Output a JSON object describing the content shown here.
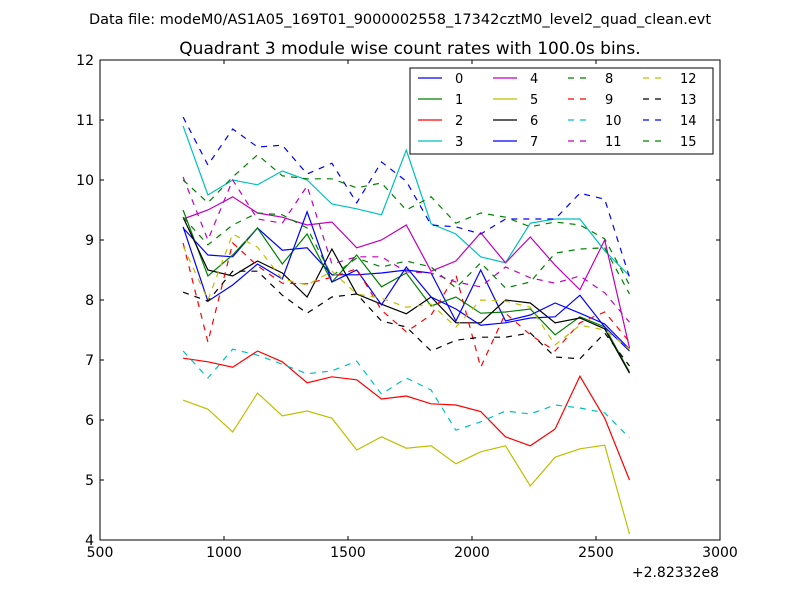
{
  "figure": {
    "suptitle": "Data file: modeM0/AS1A05_169T01_9000002558_17342cztM0_level2_quad_clean.evt",
    "x_offset_label": "+2.82332e8"
  },
  "chart_data": {
    "type": "line",
    "title": "Quadrant 3 module wise count rates with 100.0s bins.",
    "xlabel": "",
    "ylabel": "",
    "xlim": [
      500,
      3000
    ],
    "ylim": [
      4,
      12
    ],
    "xticks": [
      500,
      1000,
      1500,
      2000,
      2500,
      3000
    ],
    "yticks": [
      4,
      5,
      6,
      7,
      8,
      9,
      10,
      11,
      12
    ],
    "grid": false,
    "legend_position": "top-right",
    "x": [
      835,
      935,
      1035,
      1135,
      1235,
      1335,
      1435,
      1535,
      1635,
      1735,
      1835,
      1935,
      2035,
      2135,
      2235,
      2335,
      2435,
      2535,
      2635
    ],
    "series": [
      {
        "name": "0",
        "color": "#0000ff",
        "dash": false,
        "values": [
          9.2,
          8.75,
          8.72,
          9.2,
          8.83,
          8.87,
          8.42,
          8.42,
          8.45,
          8.5,
          8.45,
          7.65,
          8.5,
          7.65,
          7.75,
          7.95,
          7.78,
          7.6,
          7.18
        ]
      },
      {
        "name": "1",
        "color": "#008000",
        "dash": false,
        "values": [
          9.5,
          8.4,
          8.75,
          9.2,
          8.6,
          9.1,
          8.3,
          8.75,
          8.22,
          8.45,
          7.9,
          8.05,
          7.78,
          7.8,
          7.85,
          7.42,
          7.72,
          7.55,
          6.8
        ]
      },
      {
        "name": "2",
        "color": "#ff0000",
        "dash": false,
        "values": [
          7.03,
          6.97,
          6.88,
          7.15,
          6.97,
          6.62,
          6.72,
          6.67,
          6.35,
          6.4,
          6.27,
          6.25,
          6.14,
          5.72,
          5.57,
          5.85,
          6.73,
          6.03,
          5.0
        ]
      },
      {
        "name": "3",
        "color": "#00bfbf",
        "dash": false,
        "values": [
          10.9,
          9.75,
          10.0,
          9.92,
          10.15,
          10.0,
          9.6,
          9.52,
          9.42,
          10.5,
          9.27,
          9.1,
          8.72,
          8.62,
          9.28,
          9.35,
          9.35,
          8.82,
          8.4
        ]
      },
      {
        "name": "4",
        "color": "#bf00bf",
        "dash": false,
        "values": [
          9.35,
          9.5,
          9.72,
          9.45,
          9.38,
          9.25,
          9.3,
          8.87,
          9.0,
          9.25,
          8.48,
          8.65,
          9.12,
          8.62,
          9.05,
          8.58,
          8.17,
          9.0,
          7.2
        ]
      },
      {
        "name": "5",
        "color": "#bfbf00",
        "dash": false,
        "values": [
          6.33,
          6.18,
          5.8,
          6.45,
          6.07,
          6.15,
          6.03,
          5.5,
          5.72,
          5.53,
          5.57,
          5.27,
          5.47,
          5.57,
          4.9,
          5.38,
          5.52,
          5.58,
          4.1
        ]
      },
      {
        "name": "6",
        "color": "#000000",
        "dash": false,
        "values": [
          9.38,
          8.5,
          8.4,
          8.65,
          8.45,
          8.05,
          8.85,
          8.1,
          7.93,
          7.77,
          8.05,
          7.62,
          7.62,
          8.0,
          7.95,
          7.62,
          7.7,
          7.52,
          6.78
        ]
      },
      {
        "name": "7",
        "color": "#0000ff",
        "dash": false,
        "values": [
          9.22,
          7.98,
          8.25,
          8.6,
          8.35,
          9.47,
          8.3,
          8.5,
          7.92,
          8.55,
          8.05,
          7.85,
          7.58,
          7.62,
          7.7,
          7.72,
          8.08,
          7.55,
          7.15
        ]
      },
      {
        "name": "8",
        "color": "#008000",
        "dash": true,
        "values": [
          9.38,
          8.92,
          9.25,
          9.45,
          9.42,
          9.2,
          8.4,
          8.7,
          8.55,
          8.65,
          8.55,
          8.2,
          8.62,
          8.2,
          8.3,
          8.78,
          8.85,
          8.87,
          8.1
        ]
      },
      {
        "name": "9",
        "color": "#ff0000",
        "dash": true,
        "values": [
          8.95,
          7.3,
          8.95,
          8.57,
          8.28,
          8.27,
          8.38,
          8.52,
          7.83,
          7.47,
          7.75,
          8.42,
          6.88,
          7.78,
          7.42,
          7.15,
          7.62,
          7.8,
          7.3
        ]
      },
      {
        "name": "10",
        "color": "#00bfbf",
        "dash": true,
        "values": [
          7.15,
          6.7,
          7.18,
          7.08,
          6.93,
          6.77,
          6.82,
          6.98,
          6.43,
          6.7,
          6.5,
          5.83,
          5.97,
          6.15,
          6.1,
          6.25,
          6.2,
          6.12,
          5.7
        ]
      },
      {
        "name": "11",
        "color": "#bf00bf",
        "dash": true,
        "values": [
          10.05,
          9.0,
          10.0,
          9.35,
          9.28,
          9.9,
          8.6,
          8.72,
          8.72,
          8.47,
          8.45,
          8.3,
          8.22,
          8.55,
          8.37,
          8.28,
          8.4,
          8.12,
          7.63
        ]
      },
      {
        "name": "12",
        "color": "#bfbf00",
        "dash": true,
        "values": [
          8.9,
          8.0,
          9.1,
          8.88,
          8.35,
          8.25,
          8.48,
          8.1,
          8.03,
          7.88,
          7.93,
          7.55,
          8.0,
          7.98,
          7.88,
          7.25,
          7.58,
          7.5,
          7.18
        ]
      },
      {
        "name": "13",
        "color": "#000000",
        "dash": true,
        "values": [
          8.13,
          7.98,
          8.48,
          8.48,
          8.08,
          7.78,
          8.05,
          8.1,
          7.65,
          7.55,
          7.15,
          7.33,
          7.38,
          7.38,
          7.45,
          7.05,
          7.02,
          7.45,
          6.9
        ]
      },
      {
        "name": "14",
        "color": "#0000ff",
        "dash": true,
        "values": [
          11.05,
          10.25,
          10.85,
          10.55,
          10.58,
          10.1,
          10.28,
          9.62,
          10.3,
          9.98,
          9.25,
          9.22,
          9.1,
          9.35,
          9.35,
          9.35,
          9.78,
          9.68,
          8.38
        ]
      },
      {
        "name": "15",
        "color": "#008000",
        "dash": true,
        "values": [
          10.0,
          9.62,
          10.05,
          10.42,
          10.07,
          10.02,
          10.02,
          9.87,
          9.95,
          9.5,
          9.72,
          9.28,
          9.45,
          9.38,
          9.22,
          9.3,
          9.25,
          9.02,
          8.25
        ]
      }
    ]
  }
}
